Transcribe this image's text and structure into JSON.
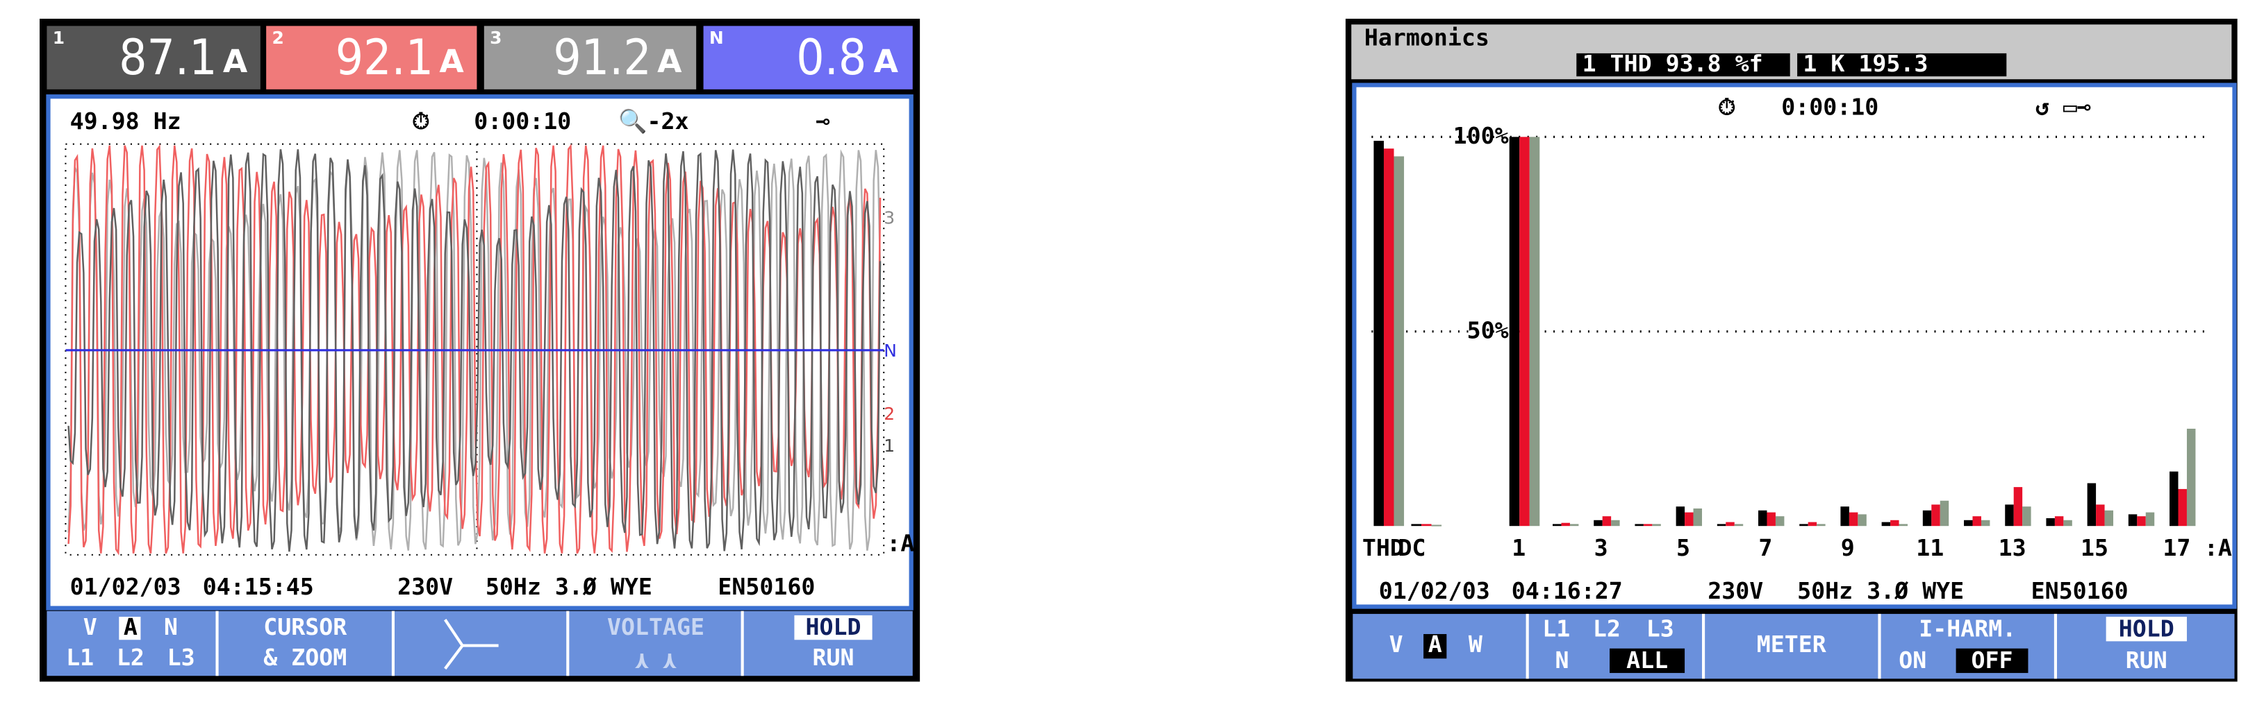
{
  "left_screen": {
    "readings": [
      {
        "phase": "1",
        "value": "87.1",
        "unit": "A"
      },
      {
        "phase": "2",
        "value": "92.1",
        "unit": "A"
      },
      {
        "phase": "3",
        "value": "91.2",
        "unit": "A"
      },
      {
        "phase": "N",
        "value": "0.8",
        "unit": "A"
      }
    ],
    "status": {
      "frequency": "49.98 Hz",
      "time": "0:00:10",
      "zoom": "-2x"
    },
    "scale_labels": [
      "3",
      "N",
      "2",
      "1",
      ":A"
    ],
    "footer": {
      "date": "01/02/03",
      "time": "04:15:45",
      "voltage": "230V",
      "config": "50Hz 3.Ø WYE",
      "standard": "EN50160"
    },
    "softkeys": [
      [
        "V",
        "A",
        "N",
        "L1",
        "L2",
        "L3"
      ],
      [
        "CURSOR",
        "& ZOOM"
      ],
      [],
      [
        "VOLTAGE"
      ],
      [
        "HOLD",
        "RUN"
      ]
    ]
  },
  "right_screen": {
    "title": "Harmonics",
    "thd": "1 THD 93.8 %f",
    "k": "1 K  195.3",
    "time": "0:00:10",
    "axis_unit": ":A",
    "footer": {
      "date": "01/02/03",
      "time": "04:16:27",
      "voltage": "230V",
      "config": "50Hz 3.Ø WYE",
      "standard": "EN50160"
    },
    "softkeys": [
      [
        "V",
        "A",
        "W"
      ],
      [
        "L1",
        "L2",
        "L3",
        "N",
        "ALL"
      ],
      [
        "METER"
      ],
      [
        "I-HARM.",
        "ON",
        "OFF"
      ],
      [
        "HOLD",
        "RUN"
      ]
    ]
  },
  "chart_data": {
    "type": "bar",
    "categories": [
      "THD",
      "DC",
      "1",
      null,
      "3",
      null,
      "5",
      null,
      "7",
      null,
      "9",
      null,
      "11",
      null,
      "13",
      null,
      "15",
      null,
      "17"
    ],
    "series": [
      {
        "name": "L1",
        "color": "#000000",
        "values": [
          99,
          0.5,
          100,
          0.5,
          1.5,
          0.5,
          5,
          0.5,
          4,
          0.5,
          5,
          1,
          4,
          1.5,
          5.5,
          2,
          11,
          3,
          14
        ]
      },
      {
        "name": "L2",
        "color": "#e8102a",
        "values": [
          97,
          0.5,
          100,
          0.8,
          2.5,
          0.5,
          3.5,
          1,
          3.5,
          1,
          3.5,
          1.5,
          5.5,
          2.5,
          10,
          2.5,
          5.5,
          2.5,
          9.5
        ]
      },
      {
        "name": "L3",
        "color": "#8a9c88",
        "values": [
          95,
          0.3,
          100,
          0.5,
          1.5,
          0.5,
          4.5,
          0.5,
          2.5,
          0.5,
          3,
          0.5,
          6.5,
          1.5,
          5,
          1.5,
          4,
          3.5,
          25
        ]
      }
    ],
    "ylim": [
      0,
      100
    ],
    "yticks": [
      {
        "value": 50,
        "label": "50%"
      },
      {
        "value": 100,
        "label": "100%"
      }
    ],
    "grid": true
  }
}
